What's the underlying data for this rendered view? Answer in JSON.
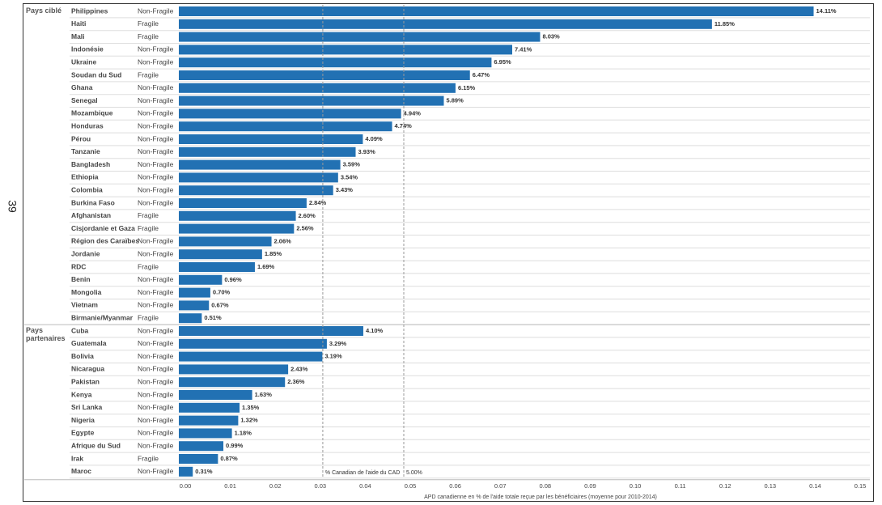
{
  "page_number": "39",
  "chart_data": {
    "type": "bar",
    "x_label": "APD canadienne en % de l'aide totale reçue par les bénéficiaires (moyenne pour 2010-2014)",
    "color": "#2271b3",
    "xlim": [
      0,
      0.15
    ],
    "xticks": [
      {
        "value": 0,
        "label": "0.00"
      },
      0.01,
      0.02,
      0.03,
      0.04,
      0.05,
      0.06,
      0.07,
      0.08,
      0.09,
      {
        "value": 0.1,
        "label": "0.10"
      },
      0.11,
      0.12,
      0.13,
      0.14,
      0.15
    ],
    "reference_lines": [
      {
        "value": 0.032,
        "label": "% Canadian de l'aide du CAD"
      },
      {
        "value": 0.05,
        "label": "5.00%"
      }
    ],
    "groups": [
      {
        "name": "Pays ciblé",
        "categories": [
          "Philippines",
          "Haiti",
          "Mali",
          "Indonésie",
          "Ukraine",
          "Soudan du Sud",
          "Ghana",
          "Senegal",
          "Mozambique",
          "Honduras",
          "Pérou",
          "Tanzanie",
          "Bangladesh",
          "Ethiopia",
          "Colombia",
          "Burkina Faso",
          "Afghanistan",
          "Cisjordanie et Gaza",
          "Région des Caraïbes",
          "Jordanie",
          "RDC",
          "Benin",
          "Mongolia",
          "Vietnam",
          "Birmanie/Myanmar"
        ],
        "fragility": [
          "Non-Fragile",
          "Fragile",
          "Fragile",
          "Non-Fragile",
          "Non-Fragile",
          "Fragile",
          "Non-Fragile",
          "Non-Fragile",
          "Non-Fragile",
          "Non-Fragile",
          "Non-Fragile",
          "Non-Fragile",
          "Non-Fragile",
          "Non-Fragile",
          "Non-Fragile",
          "Non-Fragile",
          "Fragile",
          "Fragile",
          "Non-Fragile",
          "Non-Fragile",
          "Fragile",
          "Non-Fragile",
          "Non-Fragile",
          "Non-Fragile",
          "Fragile"
        ],
        "values": [
          0.1411,
          0.1185,
          0.0803,
          0.0741,
          0.0695,
          0.0647,
          0.0615,
          0.0589,
          0.0494,
          0.0474,
          0.0409,
          0.0393,
          0.0359,
          0.0354,
          0.0343,
          0.0284,
          0.026,
          0.0256,
          0.0206,
          0.0185,
          0.0169,
          0.0096,
          0.007,
          0.0067,
          0.0051
        ],
        "value_labels": [
          "14.11%",
          "11.85%",
          "8.03%",
          "7.41%",
          "6.95%",
          "6.47%",
          "6.15%",
          "5.89%",
          "4.94%",
          "4.74%",
          "4.09%",
          "3.93%",
          "3.59%",
          "3.54%",
          "3.43%",
          "2.84%",
          "2.60%",
          "2.56%",
          "2.06%",
          "1.85%",
          "1.69%",
          "0.96%",
          "0.70%",
          "0.67%",
          "0.51%"
        ]
      },
      {
        "name": "Pays partenaires",
        "categories": [
          "Cuba",
          "Guatemala",
          "Bolivia",
          "Nicaragua",
          "Pakistan",
          "Kenya",
          "Sri Lanka",
          "Nigeria",
          "Egypte",
          "Afrique du Sud",
          "Irak",
          "Maroc"
        ],
        "fragility": [
          "Non-Fragile",
          "Non-Fragile",
          "Non-Fragile",
          "Non-Fragile",
          "Non-Fragile",
          "Non-Fragile",
          "Non-Fragile",
          "Non-Fragile",
          "Non-Fragile",
          "Non-Fragile",
          "Fragile",
          "Non-Fragile"
        ],
        "values": [
          0.041,
          0.0329,
          0.0319,
          0.0243,
          0.0236,
          0.0163,
          0.0135,
          0.0132,
          0.0118,
          0.0099,
          0.0087,
          0.0031
        ],
        "value_labels": [
          "4.10%",
          "3.29%",
          "3.19%",
          "2.43%",
          "2.36%",
          "1.63%",
          "1.35%",
          "1.32%",
          "1.18%",
          "0.99%",
          "0.87%",
          "0.31%"
        ]
      }
    ]
  }
}
